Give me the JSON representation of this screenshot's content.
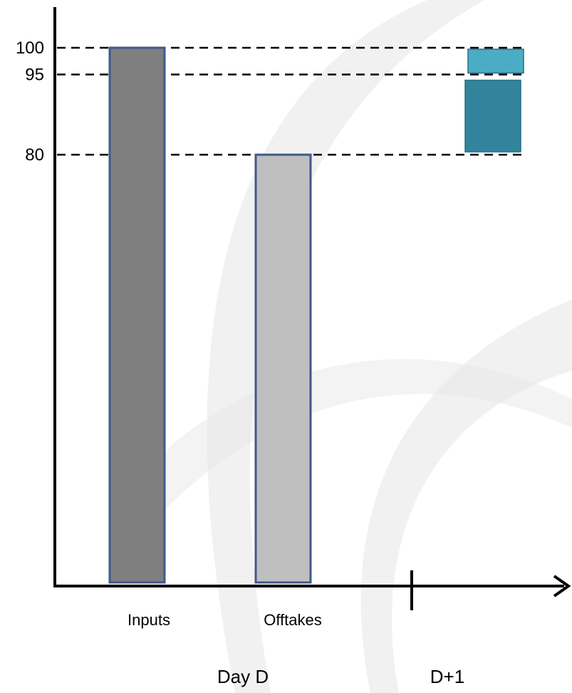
{
  "chart_data": {
    "type": "bar",
    "categories": [
      "Inputs",
      "Offtakes"
    ],
    "values": [
      100,
      80
    ],
    "bar_colors": [
      "#7f7f7f",
      "#bfbfbf"
    ],
    "bar_edge_color": "#3d5a8a",
    "reference_levels": [
      {
        "value": 100,
        "label": "100"
      },
      {
        "value": 95,
        "label": "95"
      },
      {
        "value": 80,
        "label": "80"
      }
    ],
    "next_day_segments": [
      {
        "from": 95,
        "to": 100,
        "color": "#4bacc6"
      },
      {
        "from": 80,
        "to": 95,
        "color": "#31849b"
      }
    ],
    "periods": [
      {
        "label": "Day D"
      },
      {
        "label": "D+1"
      }
    ],
    "ylim": [
      0,
      100
    ],
    "grid": false,
    "legend": "none",
    "watermark_color": "#e8e8e8"
  }
}
